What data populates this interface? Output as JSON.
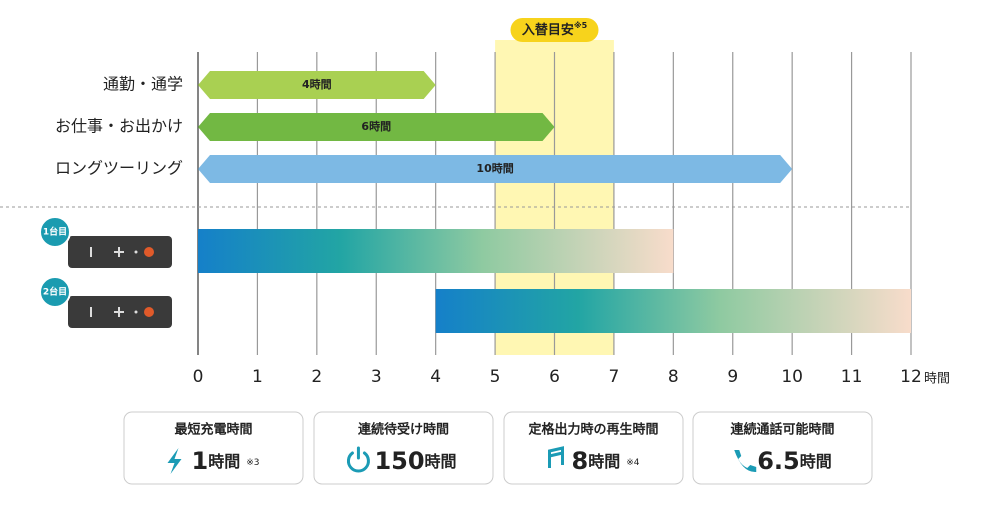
{
  "chart_data": {
    "type": "gantt",
    "xlim": [
      0,
      12
    ],
    "xticks": [
      0,
      1,
      2,
      3,
      4,
      5,
      6,
      7,
      8,
      9,
      10,
      11,
      12
    ],
    "xlabel": "時間",
    "grid": true,
    "highlight": {
      "label": "入替目安",
      "note": "※5",
      "start": 5,
      "end": 7,
      "color": "#fff7b3",
      "badge_color": "#f7d31c"
    },
    "categories": [
      "通勤・通学",
      "お仕事・お出かけ",
      "ロングツーリング"
    ],
    "values": [
      4,
      6,
      10
    ],
    "value_labels": [
      "4時間",
      "6時間",
      "10時間"
    ],
    "colors": [
      "#a9d052",
      "#72b843",
      "#7db9e4"
    ],
    "devices": [
      {
        "label": "1台目",
        "start": 0,
        "end": 8
      },
      {
        "label": "2台目",
        "start": 4,
        "end": 12
      }
    ]
  },
  "stats": [
    {
      "title": "最短充電時間",
      "value": 1,
      "unit": "時間",
      "note": "※3"
    },
    {
      "title": "連続待受け時間",
      "value": 150,
      "unit": "時間"
    },
    {
      "title": "定格出力時の再生時間",
      "value": 8,
      "unit": "時間",
      "note": "※4"
    },
    {
      "title": "連続通話可能時間",
      "value": 6.5,
      "unit": "時間"
    }
  ]
}
